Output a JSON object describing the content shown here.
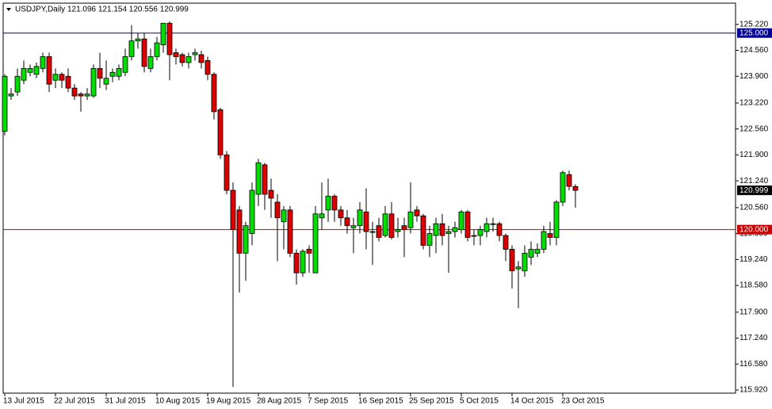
{
  "chart_data": {
    "type": "candlestick",
    "title": "USDJPY,Daily  121.096 121.154 120.556 120.999",
    "categories": [
      "13 Jul 2015",
      null,
      null,
      null,
      null,
      null,
      null,
      null,
      "22 Jul 2015",
      null,
      null,
      null,
      null,
      null,
      null,
      null,
      "31 Jul 2015",
      null,
      null,
      null,
      null,
      null,
      null,
      null,
      "10 Aug 2015",
      null,
      null,
      null,
      null,
      null,
      null,
      null,
      "19 Aug 2015",
      null,
      null,
      null,
      null,
      null,
      null,
      null,
      "28 Aug 2015",
      null,
      null,
      null,
      null,
      null,
      null,
      null,
      "7 Sep 2015",
      null,
      null,
      null,
      null,
      null,
      null,
      null,
      "16 Sep 2015",
      null,
      null,
      null,
      null,
      null,
      null,
      null,
      "25 Sep 2015",
      null,
      null,
      null,
      null,
      null,
      null,
      null,
      "5 Oct 2015",
      null,
      null,
      null,
      null,
      null,
      null,
      null,
      "14 Oct 2015",
      null,
      null,
      null,
      null,
      null,
      null,
      null,
      "23 Oct 2015",
      null,
      null
    ],
    "open": [
      122.5,
      123.4,
      123.5,
      123.8,
      124.0,
      123.95,
      124.1,
      124.4,
      123.8,
      123.95,
      123.9,
      123.6,
      123.45,
      123.4,
      123.4,
      124.1,
      123.7,
      123.9,
      123.9,
      124.0,
      124.4,
      124.8,
      124.85,
      124.1,
      124.4,
      124.7,
      125.25,
      124.5,
      124.45,
      124.25,
      124.45,
      124.45,
      124.3,
      123.95,
      123.05,
      121.9,
      121.0,
      120.5,
      119.4,
      119.9,
      120.9,
      121.65,
      121.0,
      120.7,
      120.2,
      120.5,
      119.4,
      118.9,
      119.5,
      118.9,
      120.3,
      120.5,
      120.85,
      120.5,
      120.3,
      120.05,
      120.1,
      120.45,
      119.95,
      120.1,
      119.85,
      120.4,
      119.95,
      120.1,
      120.05,
      120.5,
      120.35,
      119.6,
      119.85,
      120.15,
      119.9,
      119.95,
      120.0,
      120.45,
      119.85,
      119.85,
      119.95,
      120.15,
      120.15,
      119.85,
      119.5,
      119.0,
      118.95,
      119.3,
      119.4,
      119.5,
      119.9,
      119.8,
      120.7,
      121.4,
      121.096
    ],
    "high": [
      123.95,
      123.6,
      124.1,
      124.3,
      124.2,
      124.25,
      124.5,
      124.5,
      124.1,
      124.0,
      124.1,
      123.7,
      123.5,
      123.6,
      124.2,
      124.5,
      124.3,
      124.1,
      124.2,
      124.6,
      125.2,
      125.0,
      125.0,
      124.6,
      124.9,
      125.25,
      125.3,
      124.6,
      124.5,
      124.5,
      124.6,
      124.55,
      124.4,
      124.0,
      123.1,
      122.0,
      121.2,
      120.6,
      120.2,
      121.2,
      121.8,
      121.7,
      121.3,
      120.9,
      120.6,
      120.6,
      119.5,
      119.5,
      119.6,
      120.6,
      121.2,
      121.3,
      120.9,
      120.6,
      120.5,
      120.3,
      120.7,
      121.05,
      120.2,
      120.3,
      120.6,
      120.7,
      120.3,
      120.3,
      121.2,
      120.6,
      120.4,
      120.1,
      120.3,
      120.4,
      120.1,
      120.2,
      120.5,
      120.5,
      120.0,
      120.1,
      120.3,
      120.3,
      120.2,
      119.9,
      119.6,
      119.2,
      119.6,
      119.7,
      119.65,
      120.1,
      120.2,
      120.75,
      121.5,
      121.5,
      121.154
    ],
    "low": [
      122.4,
      123.3,
      123.4,
      123.7,
      123.9,
      123.85,
      124.0,
      123.5,
      123.6,
      123.6,
      123.5,
      123.3,
      123.0,
      123.3,
      123.35,
      123.6,
      123.55,
      123.75,
      123.8,
      123.9,
      124.3,
      124.6,
      124.0,
      124.0,
      124.3,
      124.5,
      123.8,
      124.2,
      124.15,
      124.1,
      124.3,
      124.1,
      123.8,
      122.8,
      121.8,
      120.9,
      116.0,
      118.4,
      118.7,
      119.6,
      120.6,
      120.5,
      120.3,
      119.2,
      119.5,
      119.3,
      118.6,
      118.8,
      118.9,
      118.9,
      120.0,
      120.2,
      120.2,
      120.1,
      119.9,
      119.4,
      119.9,
      119.5,
      119.1,
      119.7,
      119.8,
      119.75,
      119.8,
      119.3,
      119.9,
      120.2,
      119.5,
      119.3,
      119.4,
      119.6,
      118.9,
      119.8,
      119.9,
      119.7,
      119.6,
      119.6,
      119.8,
      119.95,
      119.7,
      119.2,
      118.5,
      118.0,
      118.8,
      119.1,
      119.3,
      119.4,
      119.6,
      119.6,
      120.6,
      121.0,
      120.556
    ],
    "close": [
      123.9,
      123.45,
      123.9,
      124.1,
      124.1,
      124.15,
      124.4,
      123.7,
      123.95,
      123.8,
      123.6,
      123.4,
      123.4,
      123.45,
      124.1,
      123.85,
      123.85,
      124.0,
      124.1,
      124.4,
      124.8,
      124.85,
      124.15,
      124.4,
      124.75,
      125.25,
      124.45,
      124.4,
      124.25,
      124.4,
      124.5,
      124.25,
      123.95,
      123.0,
      121.9,
      121.0,
      120.0,
      119.4,
      120.1,
      121.0,
      121.7,
      120.9,
      120.8,
      120.3,
      120.5,
      119.4,
      118.9,
      119.45,
      119.4,
      120.4,
      120.4,
      120.85,
      120.5,
      120.3,
      120.1,
      120.1,
      120.5,
      119.95,
      119.95,
      119.8,
      120.4,
      119.8,
      120.0,
      120.0,
      120.45,
      120.35,
      119.6,
      119.9,
      120.15,
      119.85,
      119.95,
      120.05,
      120.45,
      119.8,
      119.85,
      120.0,
      120.15,
      120.15,
      119.85,
      119.5,
      118.95,
      119.05,
      119.4,
      119.5,
      119.5,
      119.95,
      119.8,
      120.7,
      121.45,
      121.1,
      120.999
    ],
    "up_color": "#00dd00",
    "down_color": "#dd0000",
    "ylim": [
      115.84,
      125.76
    ],
    "yticks": [
      {
        "value": 125.22,
        "label": "125.220"
      },
      {
        "value": 124.56,
        "label": "124.560"
      },
      {
        "value": 123.9,
        "label": "123.900"
      },
      {
        "value": 123.22,
        "label": "123.220"
      },
      {
        "value": 122.56,
        "label": "122.560"
      },
      {
        "value": 121.9,
        "label": "121.900"
      },
      {
        "value": 121.24,
        "label": "121.240"
      },
      {
        "value": 120.56,
        "label": "120.560"
      },
      {
        "value": 119.9,
        "label": "119.900"
      },
      {
        "value": 119.24,
        "label": "119.240"
      },
      {
        "value": 118.58,
        "label": "118.580"
      },
      {
        "value": 117.9,
        "label": "117.900"
      },
      {
        "value": 117.24,
        "label": "117.240"
      },
      {
        "value": 116.58,
        "label": "116.580"
      },
      {
        "value": 115.92,
        "label": "115.920"
      }
    ],
    "hlines": [
      {
        "value": 125,
        "label": "125.000",
        "color": "#000099"
      },
      {
        "value": 120,
        "label": "120.000",
        "color": "#cc0000"
      }
    ],
    "last_price": {
      "value": 120.999,
      "label": "120.999",
      "color": "#000000"
    }
  }
}
